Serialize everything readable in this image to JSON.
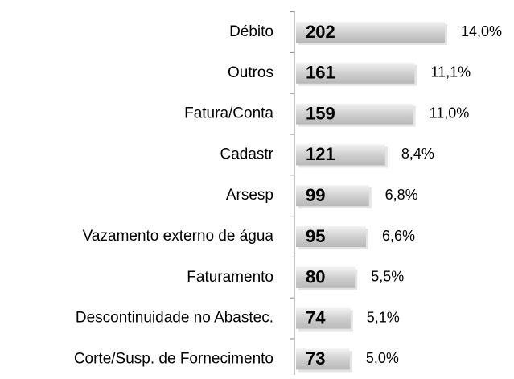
{
  "chart_data": {
    "type": "barh",
    "categories": [
      "Débito",
      "Outros",
      "Fatura/Conta",
      "Cadastr",
      "Arsesp",
      "Vazamento externo de água",
      "Faturamento",
      "Descontinuidade no Abastec.",
      "Corte/Susp. de Fornecimento"
    ],
    "values": [
      202,
      161,
      159,
      121,
      99,
      95,
      80,
      74,
      73
    ],
    "shares": [
      14.0,
      11.1,
      11.0,
      8.4,
      6.8,
      6.6,
      5.5,
      5.1,
      5.0
    ],
    "share_labels": [
      "14,0%",
      "11,1%",
      "11,0%",
      "8,4%",
      "6,8%",
      "6,6%",
      "5,5%",
      "5,1%",
      "5,0%"
    ],
    "color": "#c8c8c8"
  }
}
